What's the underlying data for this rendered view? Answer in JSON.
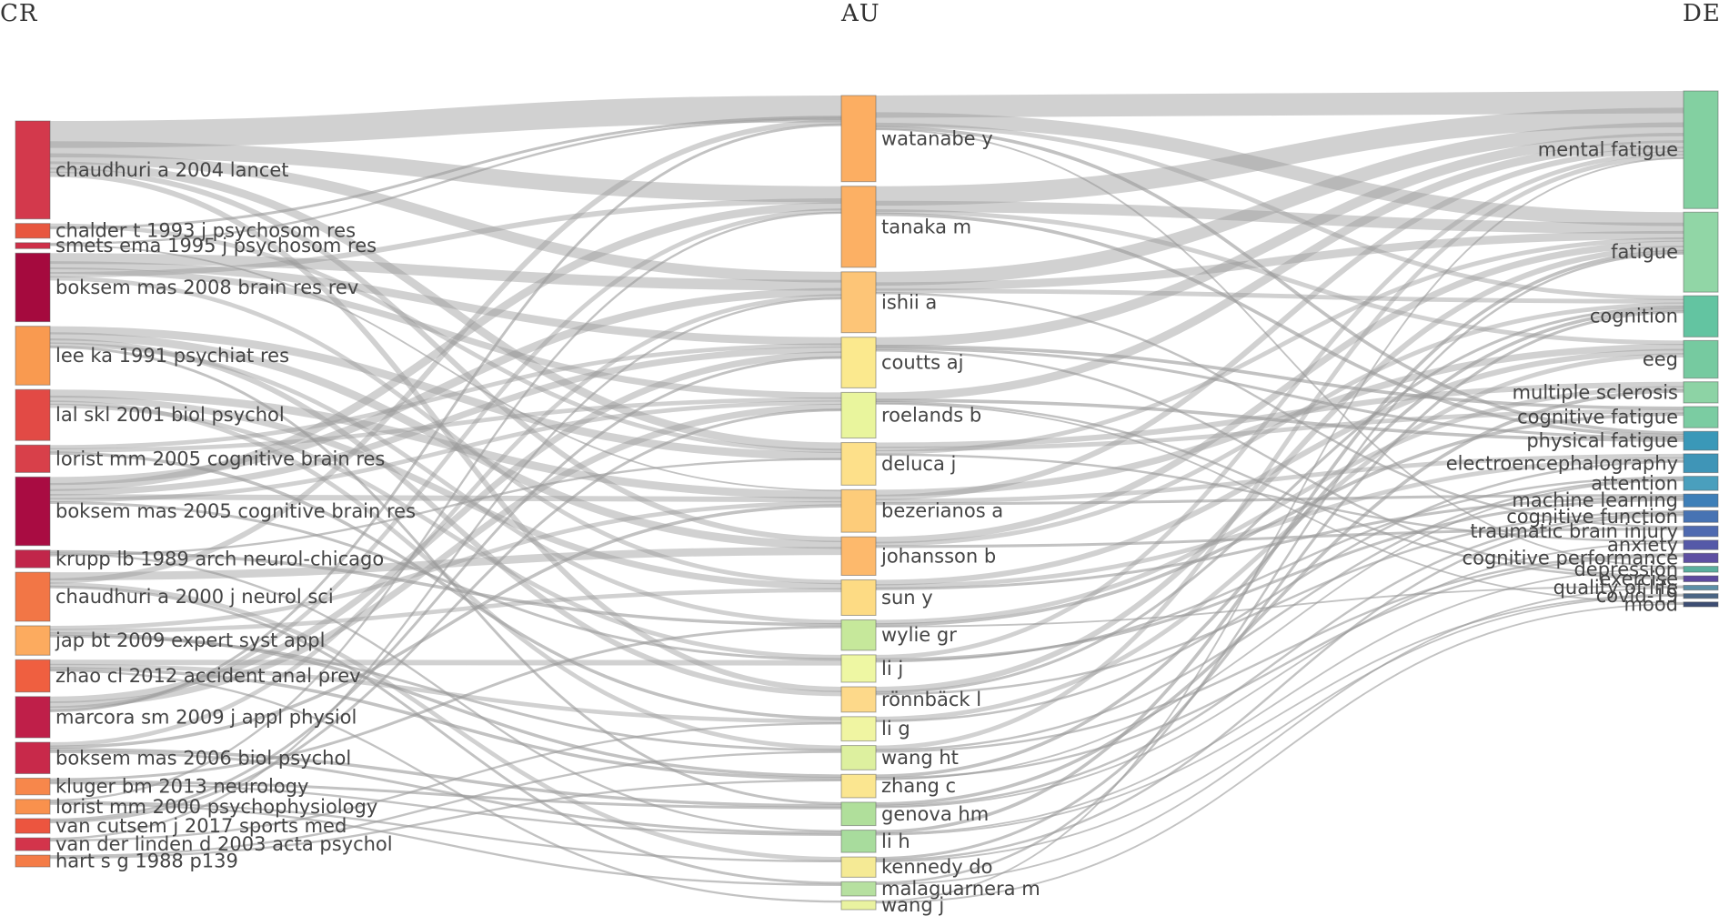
{
  "columns": {
    "cr": "CR",
    "au": "AU",
    "de": "DE"
  },
  "colors": {
    "link": "#9a9a9a"
  },
  "nodes": {
    "cr": [
      {
        "label": "chaudhuri a 2004 lancet",
        "weight": 10,
        "color": "#d3394c"
      },
      {
        "label": "chalder t 1993 j psychosom res",
        "weight": 1.5,
        "color": "#e8573f"
      },
      {
        "label": "smets ema 1995 j psychosom res",
        "weight": 0.6,
        "color": "#cf2f47"
      },
      {
        "label": "boksem mas 2008 brain res rev",
        "weight": 7,
        "color": "#a50a3e"
      },
      {
        "label": "lee ka 1991 psychiat res",
        "weight": 6,
        "color": "#f99a50"
      },
      {
        "label": "lal skl 2001 biol psychol",
        "weight": 5.2,
        "color": "#e24a45"
      },
      {
        "label": "lorist mm 2005 cognitive brain res",
        "weight": 2.8,
        "color": "#d8404a"
      },
      {
        "label": "boksem mas 2005 cognitive brain res",
        "weight": 7,
        "color": "#a90c42"
      },
      {
        "label": "krupp lb 1989 arch neurol-chicago",
        "weight": 1.8,
        "color": "#c1264a"
      },
      {
        "label": "chaudhuri a 2000 j neurol sci",
        "weight": 5,
        "color": "#f27646"
      },
      {
        "label": "jap bt 2009 expert syst appl",
        "weight": 3,
        "color": "#fcab5f"
      },
      {
        "label": "zhao cl 2012 accident anal prev",
        "weight": 3.3,
        "color": "#ef5f40"
      },
      {
        "label": "marcora sm 2009 j appl physiol",
        "weight": 4.2,
        "color": "#bf1f49"
      },
      {
        "label": "boksem mas 2006 biol psychol",
        "weight": 3.2,
        "color": "#c8294a"
      },
      {
        "label": "kluger bm 2013 neurology",
        "weight": 1.7,
        "color": "#f7874b"
      },
      {
        "label": "lorist mm 2000 psychophysiology",
        "weight": 1.5,
        "color": "#f9914d"
      },
      {
        "label": "van cutsem j 2017 sports med",
        "weight": 1.5,
        "color": "#ec553f"
      },
      {
        "label": "van der linden d 2003 acta psychol",
        "weight": 1.3,
        "color": "#d3344b"
      },
      {
        "label": "hart s g 1988 p139",
        "weight": 1.2,
        "color": "#f47c47"
      }
    ],
    "au": [
      {
        "label": "watanabe y",
        "weight": 8.5,
        "color": "#fcae62"
      },
      {
        "label": "tanaka m",
        "weight": 8,
        "color": "#fcb064"
      },
      {
        "label": "ishii a",
        "weight": 6,
        "color": "#fdc577"
      },
      {
        "label": "coutts aj",
        "weight": 5,
        "color": "#fbe98e"
      },
      {
        "label": "roelands b",
        "weight": 4.5,
        "color": "#e9f59d"
      },
      {
        "label": "deluca j",
        "weight": 4.2,
        "color": "#fde08a"
      },
      {
        "label": "bezerianos a",
        "weight": 4.2,
        "color": "#fdcc7a"
      },
      {
        "label": "johansson b",
        "weight": 3.8,
        "color": "#fdb96c"
      },
      {
        "label": "sun y",
        "weight": 3.5,
        "color": "#fddb84"
      },
      {
        "label": "wylie gr",
        "weight": 3,
        "color": "#c6e89b"
      },
      {
        "label": "li j",
        "weight": 2.7,
        "color": "#eef7a3"
      },
      {
        "label": "rönnbäck l",
        "weight": 2.5,
        "color": "#fdd98a"
      },
      {
        "label": "li g",
        "weight": 2.4,
        "color": "#f0f5a2"
      },
      {
        "label": "wang ht",
        "weight": 2.4,
        "color": "#ddf09f"
      },
      {
        "label": "zhang c",
        "weight": 2.3,
        "color": "#fbe690"
      },
      {
        "label": "genova hm",
        "weight": 2.3,
        "color": "#b0df9b"
      },
      {
        "label": "li h",
        "weight": 2.2,
        "color": "#a8dc9d"
      },
      {
        "label": "kennedy do",
        "weight": 2,
        "color": "#f5ea95"
      },
      {
        "label": "malaguarnera m",
        "weight": 1.4,
        "color": "#b6e0a0"
      },
      {
        "label": "wang j",
        "weight": 0.9,
        "color": "#e9f2a0"
      }
    ],
    "de": [
      {
        "label": "mental fatigue",
        "weight": 10,
        "color": "#83d0a1"
      },
      {
        "label": "fatigue",
        "weight": 6.8,
        "color": "#91d6a6"
      },
      {
        "label": "cognition",
        "weight": 3.5,
        "color": "#63c4a1"
      },
      {
        "label": "eeg",
        "weight": 3.2,
        "color": "#76caa0"
      },
      {
        "label": "multiple sclerosis",
        "weight": 1.8,
        "color": "#8dd3a5"
      },
      {
        "label": "cognitive fatigue",
        "weight": 1.8,
        "color": "#7bcca2"
      },
      {
        "label": "physical fatigue",
        "weight": 1.6,
        "color": "#3a98b8"
      },
      {
        "label": "electroencephalography",
        "weight": 1.6,
        "color": "#3f95b7"
      },
      {
        "label": "attention",
        "weight": 1.2,
        "color": "#4a9fbd"
      },
      {
        "label": "machine learning",
        "weight": 1.1,
        "color": "#3e7fb8"
      },
      {
        "label": "cognitive function",
        "weight": 1,
        "color": "#4773b3"
      },
      {
        "label": "traumatic brain injury",
        "weight": 0.9,
        "color": "#4f6ab0"
      },
      {
        "label": "anxiety",
        "weight": 0.8,
        "color": "#5559a8"
      },
      {
        "label": "cognitive performance",
        "weight": 0.8,
        "color": "#5e4fa2"
      },
      {
        "label": "depression",
        "weight": 0.5,
        "color": "#5aae9e"
      },
      {
        "label": "exercise",
        "weight": 0.5,
        "color": "#5d4a9f"
      },
      {
        "label": "quality of life",
        "weight": 0.4,
        "color": "#5c8fa7"
      },
      {
        "label": "covid-19",
        "weight": 0.4,
        "color": "#4a6585"
      },
      {
        "label": "mood",
        "weight": 0.4,
        "color": "#3d4d73"
      }
    ]
  },
  "links": {
    "cr_au": [
      [
        0,
        0,
        5
      ],
      [
        0,
        1,
        3
      ],
      [
        0,
        2,
        2
      ],
      [
        0,
        5,
        1.5
      ],
      [
        0,
        7,
        1
      ],
      [
        0,
        11,
        1
      ],
      [
        1,
        5,
        0.8
      ],
      [
        1,
        0,
        0.5
      ],
      [
        2,
        0,
        0.4
      ],
      [
        2,
        6,
        0.3
      ],
      [
        3,
        2,
        2
      ],
      [
        3,
        3,
        1.5
      ],
      [
        3,
        4,
        1.2
      ],
      [
        3,
        1,
        1
      ],
      [
        3,
        8,
        0.8
      ],
      [
        4,
        5,
        1.5
      ],
      [
        4,
        7,
        1.5
      ],
      [
        4,
        11,
        1
      ],
      [
        4,
        9,
        0.8
      ],
      [
        4,
        15,
        0.5
      ],
      [
        5,
        6,
        1.5
      ],
      [
        5,
        8,
        1.2
      ],
      [
        5,
        13,
        0.8
      ],
      [
        5,
        10,
        0.8
      ],
      [
        6,
        3,
        0.8
      ],
      [
        6,
        4,
        0.8
      ],
      [
        6,
        12,
        0.6
      ],
      [
        7,
        2,
        1.5
      ],
      [
        7,
        1,
        1.5
      ],
      [
        7,
        3,
        1.2
      ],
      [
        7,
        6,
        1
      ],
      [
        7,
        4,
        0.8
      ],
      [
        7,
        10,
        0.5
      ],
      [
        8,
        9,
        0.6
      ],
      [
        8,
        16,
        0.4
      ],
      [
        8,
        5,
        0.4
      ],
      [
        9,
        7,
        1.5
      ],
      [
        9,
        0,
        1
      ],
      [
        9,
        17,
        0.8
      ],
      [
        9,
        18,
        0.5
      ],
      [
        10,
        6,
        0.8
      ],
      [
        10,
        8,
        0.8
      ],
      [
        10,
        14,
        0.6
      ],
      [
        10,
        13,
        0.5
      ],
      [
        11,
        10,
        1
      ],
      [
        11,
        12,
        0.8
      ],
      [
        11,
        14,
        0.6
      ],
      [
        11,
        19,
        0.4
      ],
      [
        12,
        3,
        1.2
      ],
      [
        12,
        4,
        1.2
      ],
      [
        12,
        1,
        0.8
      ],
      [
        12,
        0,
        0.5
      ],
      [
        13,
        2,
        0.8
      ],
      [
        13,
        6,
        0.6
      ],
      [
        13,
        15,
        0.6
      ],
      [
        13,
        16,
        0.5
      ],
      [
        14,
        9,
        0.5
      ],
      [
        14,
        15,
        0.5
      ],
      [
        14,
        16,
        0.4
      ],
      [
        15,
        1,
        0.4
      ],
      [
        15,
        17,
        0.4
      ],
      [
        15,
        18,
        0.4
      ],
      [
        16,
        3,
        0.5
      ],
      [
        16,
        4,
        0.5
      ],
      [
        17,
        2,
        0.4
      ],
      [
        17,
        12,
        0.4
      ],
      [
        18,
        13,
        0.4
      ],
      [
        18,
        14,
        0.4
      ]
    ],
    "au_de": [
      [
        0,
        0,
        4
      ],
      [
        0,
        1,
        2.5
      ],
      [
        0,
        2,
        0.8
      ],
      [
        0,
        6,
        0.6
      ],
      [
        0,
        14,
        0.3
      ],
      [
        1,
        0,
        3.5
      ],
      [
        1,
        1,
        2
      ],
      [
        1,
        3,
        0.8
      ],
      [
        1,
        6,
        0.6
      ],
      [
        2,
        0,
        2.5
      ],
      [
        2,
        1,
        1.5
      ],
      [
        2,
        2,
        0.8
      ],
      [
        2,
        11,
        0.4
      ],
      [
        3,
        0,
        1.8
      ],
      [
        3,
        5,
        0.6
      ],
      [
        3,
        6,
        0.5
      ],
      [
        3,
        15,
        0.4
      ],
      [
        4,
        0,
        1.5
      ],
      [
        4,
        6,
        0.6
      ],
      [
        4,
        15,
        0.4
      ],
      [
        4,
        18,
        0.3
      ],
      [
        5,
        4,
        1
      ],
      [
        5,
        5,
        0.8
      ],
      [
        5,
        1,
        0.8
      ],
      [
        5,
        12,
        0.4
      ],
      [
        6,
        3,
        1.2
      ],
      [
        6,
        0,
        1
      ],
      [
        6,
        7,
        0.8
      ],
      [
        6,
        9,
        0.5
      ],
      [
        7,
        1,
        1.2
      ],
      [
        7,
        2,
        0.8
      ],
      [
        7,
        11,
        0.5
      ],
      [
        8,
        3,
        1
      ],
      [
        8,
        7,
        0.8
      ],
      [
        8,
        9,
        0.5
      ],
      [
        9,
        4,
        0.8
      ],
      [
        9,
        5,
        0.6
      ],
      [
        9,
        16,
        0.3
      ],
      [
        10,
        0,
        0.8
      ],
      [
        10,
        9,
        0.5
      ],
      [
        10,
        8,
        0.4
      ],
      [
        11,
        1,
        1
      ],
      [
        11,
        2,
        0.5
      ],
      [
        11,
        10,
        0.4
      ],
      [
        12,
        3,
        0.8
      ],
      [
        12,
        7,
        0.4
      ],
      [
        13,
        0,
        0.8
      ],
      [
        13,
        8,
        0.4
      ],
      [
        13,
        13,
        0.4
      ],
      [
        14,
        2,
        0.6
      ],
      [
        14,
        13,
        0.4
      ],
      [
        14,
        8,
        0.3
      ],
      [
        15,
        4,
        0.6
      ],
      [
        15,
        10,
        0.4
      ],
      [
        15,
        12,
        0.3
      ],
      [
        16,
        1,
        0.6
      ],
      [
        16,
        14,
        0.3
      ],
      [
        16,
        17,
        0.3
      ],
      [
        17,
        2,
        0.5
      ],
      [
        17,
        10,
        0.4
      ],
      [
        17,
        17,
        0.3
      ],
      [
        18,
        1,
        0.4
      ],
      [
        18,
        16,
        0.3
      ],
      [
        19,
        0,
        0.3
      ],
      [
        19,
        18,
        0.3
      ]
    ]
  }
}
